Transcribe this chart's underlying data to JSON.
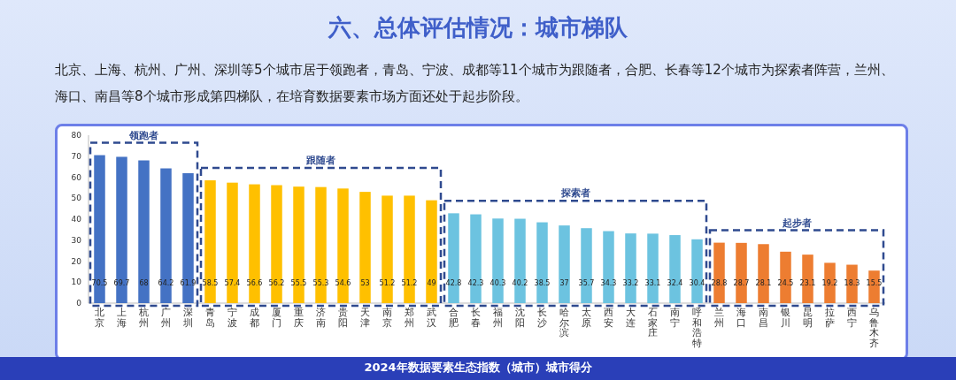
{
  "chart_data": {
    "type": "bar",
    "title": "六、总体评估情况：城市梯队",
    "subtitle": "北京、上海、杭州、广州、深圳等5个城市居于领跑者，青岛、宁波、成都等11个城市为跟随者，合肥、长春等12个城市为探索者阵营，兰州、海口、南昌等8个城市形成第四梯队，在培育数据要素市场方面还处于起步阶段。",
    "xlabel": "2024年数据要素生态指数（城市）城市得分",
    "categories": [
      "北京",
      "上海",
      "杭州",
      "广州",
      "深圳",
      "青岛",
      "宁波",
      "成都",
      "厦门",
      "重庆",
      "济南",
      "贵阳",
      "天津",
      "南京",
      "郑州",
      "武汉",
      "合肥",
      "长春",
      "福州",
      "沈阳",
      "长沙",
      "哈尔滨",
      "太原",
      "西安",
      "大连",
      "石家庄",
      "南宁",
      "呼和浩特",
      "兰州",
      "海口",
      "南昌",
      "银川",
      "昆明",
      "拉萨",
      "西宁",
      "乌鲁木齐"
    ],
    "values": [
      70.5,
      69.7,
      68,
      64.2,
      61.9,
      58.5,
      57.4,
      56.6,
      56.2,
      55.5,
      55.3,
      54.6,
      53,
      51.2,
      51.2,
      49,
      42.8,
      42.3,
      40.3,
      40.2,
      38.5,
      37,
      35.7,
      34.3,
      33.2,
      33.1,
      32.4,
      30.4,
      28.8,
      28.7,
      28.1,
      24.5,
      23.1,
      19.2,
      18.3,
      15.5
    ],
    "colors": [
      "#4472c4",
      "#4472c4",
      "#4472c4",
      "#4472c4",
      "#4472c4",
      "#ffc000",
      "#ffc000",
      "#ffc000",
      "#ffc000",
      "#ffc000",
      "#ffc000",
      "#ffc000",
      "#ffc000",
      "#ffc000",
      "#ffc000",
      "#ffc000",
      "#6cc3e0",
      "#6cc3e0",
      "#6cc3e0",
      "#6cc3e0",
      "#6cc3e0",
      "#6cc3e0",
      "#6cc3e0",
      "#6cc3e0",
      "#6cc3e0",
      "#6cc3e0",
      "#6cc3e0",
      "#6cc3e0",
      "#ed7d31",
      "#ed7d31",
      "#ed7d31",
      "#ed7d31",
      "#ed7d31",
      "#ed7d31",
      "#ed7d31",
      "#ed7d31"
    ],
    "data_labels": true,
    "ylim": [
      0,
      80
    ],
    "yticks": [
      0,
      10,
      20,
      30,
      40,
      50,
      60,
      70,
      80
    ],
    "grid": false,
    "annotations": [
      "领跑者",
      "跟随者",
      "探索者",
      "起步者"
    ]
  }
}
